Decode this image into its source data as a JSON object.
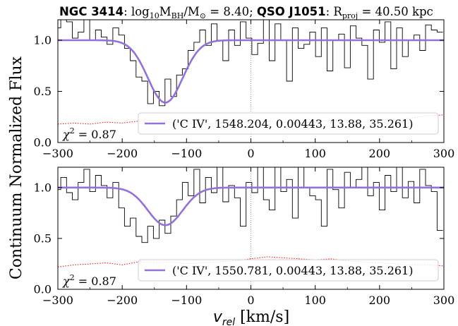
{
  "title": {
    "galaxy": "NGC 3414",
    "sep1": ": ",
    "mass_label": "log",
    "mass_sub": "10",
    "mass_m": "M",
    "mass_bh": "BH",
    "mass_slash": "/M",
    "mass_sun": "⊙",
    "mass_value": " = 8.40; ",
    "qso": "QSO J1051",
    "sep2": ": R",
    "rproj_sub": "proj",
    "rproj_value": " = 40.50 kpc"
  },
  "ylabel": "Continuum Normalized Flux",
  "xlabel_var": "v",
  "xlabel_sub": "rel",
  "xlabel_unit": " [km/s]",
  "colors": {
    "data": "#000000",
    "model": "#9370db",
    "error": "#ff0000",
    "zero_line": "#999999"
  },
  "chart_data": [
    {
      "type": "line",
      "panel": "top",
      "xlim": [
        -300,
        300
      ],
      "ylim": [
        0.0,
        1.2
      ],
      "xticks": [
        "−300",
        "−200",
        "−100",
        "0",
        "100",
        "200",
        "300"
      ],
      "yticks": [
        "0.0",
        "0.5",
        "1.0"
      ],
      "legend": "('C IV', 1548.204, 0.00443, 13.88, 35.261)",
      "legend_position": "lower-right",
      "chi2_label": "χ",
      "chi2_sup": "2",
      "chi2_value": " = 0.87",
      "model": {
        "continuum": 1.0,
        "center": -133,
        "depth": 0.61,
        "sigma": 27
      },
      "flux": {
        "x": [
          -300,
          -291,
          -282,
          -273,
          -264,
          -255,
          -246,
          -237,
          -228,
          -219,
          -210,
          -201,
          -192,
          -183,
          -174,
          -165,
          -156,
          -147,
          -138,
          -129,
          -120,
          -111,
          -102,
          -93,
          -84,
          -75,
          -66,
          -57,
          -48,
          -39,
          -30,
          -21,
          -12,
          -3,
          6,
          15,
          24,
          33,
          42,
          51,
          60,
          69,
          78,
          87,
          96,
          105,
          114,
          123,
          132,
          141,
          150,
          159,
          168,
          177,
          186,
          195,
          204,
          213,
          222,
          231,
          240,
          249,
          258,
          267,
          276,
          285,
          294
        ],
        "y": [
          1.12,
          1.25,
          1.18,
          1.02,
          1.08,
          1.22,
          1.0,
          1.1,
          1.03,
          0.96,
          1.12,
          1.05,
          0.92,
          0.8,
          0.64,
          0.6,
          0.38,
          0.5,
          0.36,
          0.62,
          0.45,
          0.66,
          0.72,
          0.9,
          0.98,
          1.1,
          0.95,
          1.16,
          1.0,
          0.8,
          1.1,
          0.95,
          1.18,
          1.02,
          0.86,
          0.97,
          1.2,
          0.8,
          1.16,
          1.0,
          0.6,
          1.12,
          0.92,
          0.96,
          1.08,
          0.84,
          1.12,
          0.7,
          1.0,
          1.06,
          0.73,
          1.14,
          1.02,
          0.95,
          0.62,
          1.1,
          0.98,
          1.18,
          0.72,
          1.12,
          0.84,
          1.0,
          1.05,
          0.9,
          1.15,
          1.1,
          1.08
        ]
      },
      "error": {
        "x": [
          -300,
          -275,
          -250,
          -225,
          -200,
          -175,
          -150,
          -125,
          -100,
          -75,
          -50,
          -25,
          0,
          25,
          50,
          75,
          100,
          125,
          150,
          175,
          200,
          225,
          250,
          275,
          300
        ],
        "y": [
          0.18,
          0.19,
          0.18,
          0.2,
          0.19,
          0.21,
          0.22,
          0.2,
          0.19,
          0.18,
          0.19,
          0.2,
          0.19,
          0.21,
          0.2,
          0.19,
          0.2,
          0.22,
          0.21,
          0.2,
          0.23,
          0.22,
          0.24,
          0.26,
          0.27
        ]
      }
    },
    {
      "type": "line",
      "panel": "bottom",
      "xlim": [
        -300,
        300
      ],
      "ylim": [
        0.0,
        1.2
      ],
      "xticks": [
        "−300",
        "−200",
        "−100",
        "0",
        "100",
        "200",
        "300"
      ],
      "yticks": [
        "0.0",
        "0.5",
        "1.0"
      ],
      "legend": "('C IV', 1550.781, 0.00443, 13.88, 35.261)",
      "legend_position": "lower-right",
      "chi2_label": "χ",
      "chi2_sup": "2",
      "chi2_value": " = 0.87",
      "model": {
        "continuum": 1.0,
        "center": -133,
        "depth": 0.37,
        "sigma": 27
      },
      "flux": {
        "x": [
          -300,
          -291,
          -282,
          -273,
          -264,
          -255,
          -246,
          -237,
          -228,
          -219,
          -210,
          -201,
          -192,
          -183,
          -174,
          -165,
          -156,
          -147,
          -138,
          -129,
          -120,
          -111,
          -102,
          -93,
          -84,
          -75,
          -66,
          -57,
          -48,
          -39,
          -30,
          -21,
          -12,
          -3,
          6,
          15,
          24,
          33,
          42,
          51,
          60,
          69,
          78,
          87,
          96,
          105,
          114,
          123,
          132,
          141,
          150,
          159,
          168,
          177,
          186,
          195,
          204,
          213,
          222,
          231,
          240,
          249,
          258,
          267,
          276,
          285,
          294
        ],
        "y": [
          0.98,
          1.1,
          0.95,
          0.88,
          1.05,
          1.18,
          0.96,
          1.12,
          1.02,
          0.9,
          1.05,
          0.8,
          0.62,
          0.7,
          0.52,
          0.46,
          0.62,
          0.5,
          0.68,
          0.55,
          0.72,
          0.88,
          1.05,
          0.92,
          1.18,
          0.85,
          1.1,
          0.95,
          1.2,
          0.86,
          1.02,
          0.9,
          0.62,
          1.05,
          0.95,
          1.28,
          0.88,
          0.78,
          1.22,
          0.96,
          1.08,
          0.7,
          1.25,
          1.0,
          0.92,
          0.88,
          0.62,
          1.18,
          0.98,
          0.8,
          1.15,
          1.0,
          1.08,
          1.28,
          0.92,
          1.05,
          0.78,
          1.12,
          0.96,
          1.2,
          0.9,
          1.06,
          0.85,
          1.18,
          1.02,
          0.96,
          0.58
        ]
      },
      "error": {
        "x": [
          -300,
          -275,
          -250,
          -225,
          -200,
          -175,
          -150,
          -125,
          -100,
          -75,
          -50,
          -25,
          0,
          25,
          50,
          75,
          100,
          125,
          150,
          175,
          200,
          225,
          250,
          275,
          300
        ],
        "y": [
          0.22,
          0.24,
          0.25,
          0.26,
          0.24,
          0.27,
          0.26,
          0.27,
          0.25,
          0.26,
          0.27,
          0.28,
          0.3,
          0.32,
          0.31,
          0.3,
          0.29,
          0.3,
          0.28,
          0.27,
          0.26,
          0.25,
          0.24,
          0.24,
          0.23
        ]
      }
    }
  ]
}
